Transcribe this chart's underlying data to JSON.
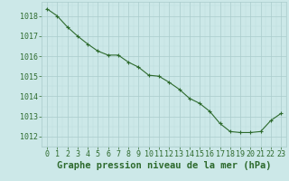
{
  "x": [
    0,
    1,
    2,
    3,
    4,
    5,
    6,
    7,
    8,
    9,
    10,
    11,
    12,
    13,
    14,
    15,
    16,
    17,
    18,
    19,
    20,
    21,
    22,
    23
  ],
  "y": [
    1018.35,
    1018.0,
    1017.45,
    1017.0,
    1016.6,
    1016.25,
    1016.05,
    1016.05,
    1015.7,
    1015.45,
    1015.05,
    1015.0,
    1014.7,
    1014.35,
    1013.9,
    1013.65,
    1013.25,
    1012.65,
    1012.25,
    1012.2,
    1012.2,
    1012.25,
    1012.8,
    1013.15
  ],
  "line_color": "#2d6a2d",
  "marker": "+",
  "marker_color": "#2d6a2d",
  "bg_color": "#cce8e8",
  "grid_color_major": "#aacccc",
  "grid_color_minor": "#bbdddd",
  "xlabel": "Graphe pression niveau de la mer (hPa)",
  "xlabel_color": "#2d6a2d",
  "tick_color": "#2d6a2d",
  "ylim": [
    1011.5,
    1018.7
  ],
  "xlim": [
    -0.5,
    23.5
  ],
  "yticks": [
    1012,
    1013,
    1014,
    1015,
    1016,
    1017,
    1018
  ],
  "xticks": [
    0,
    1,
    2,
    3,
    4,
    5,
    6,
    7,
    8,
    9,
    10,
    11,
    12,
    13,
    14,
    15,
    16,
    17,
    18,
    19,
    20,
    21,
    22,
    23
  ],
  "xlabel_fontsize": 7.5,
  "tick_fontsize": 6.0,
  "line_width": 0.8,
  "marker_size": 3.5
}
